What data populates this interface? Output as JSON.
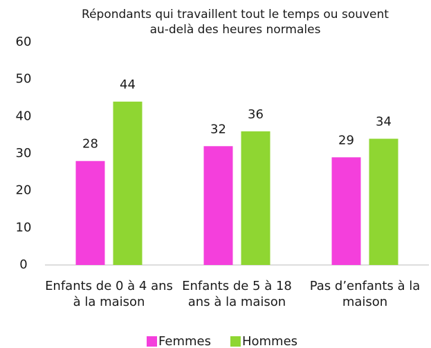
{
  "chart_data": {
    "type": "bar",
    "title": "Répondants qui travaillent tout le temps ou souvent au-delà des heures normales",
    "categories": [
      "Enfants de 0 à 4 ans à la maison",
      "Enfants de 5 à 18 ans à la maison",
      "Pas d’enfants à la maison"
    ],
    "series": [
      {
        "name": "Femmes",
        "color": "#f43fdc",
        "values": [
          28,
          32,
          29
        ]
      },
      {
        "name": "Hommes",
        "color": "#8fd632",
        "values": [
          44,
          36,
          34
        ]
      }
    ],
    "ylim": [
      0,
      60
    ],
    "yticks": [
      0,
      10,
      20,
      30,
      40,
      50,
      60
    ],
    "grid": false,
    "legend": "bottom"
  }
}
